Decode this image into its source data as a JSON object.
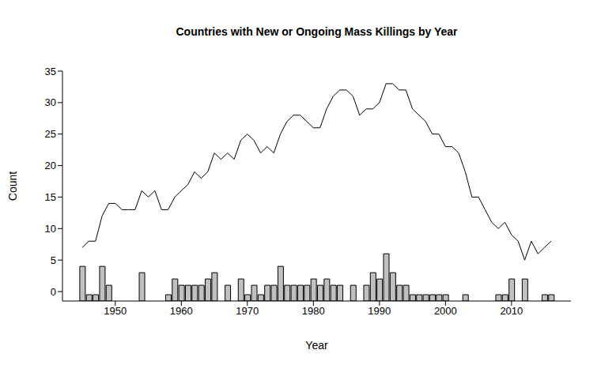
{
  "chart_data": {
    "type": "line",
    "title": "Countries with New or Ongoing Mass Killings by Year",
    "xlabel": "Year",
    "ylabel": "Count",
    "x": [
      1945,
      1946,
      1947,
      1948,
      1949,
      1950,
      1951,
      1952,
      1953,
      1954,
      1955,
      1956,
      1957,
      1958,
      1959,
      1960,
      1961,
      1962,
      1963,
      1964,
      1965,
      1966,
      1967,
      1968,
      1969,
      1970,
      1971,
      1972,
      1973,
      1974,
      1975,
      1976,
      1977,
      1978,
      1979,
      1980,
      1981,
      1982,
      1983,
      1984,
      1985,
      1986,
      1987,
      1988,
      1989,
      1990,
      1991,
      1992,
      1993,
      1994,
      1995,
      1996,
      1997,
      1998,
      1999,
      2000,
      2001,
      2002,
      2003,
      2004,
      2005,
      2006,
      2007,
      2008,
      2009,
      2010,
      2011,
      2012,
      2013,
      2014,
      2015,
      2016
    ],
    "series": [
      {
        "type": "line",
        "color": "#000000",
        "values": [
          7,
          8,
          8,
          12,
          14,
          14,
          13,
          13,
          13,
          16,
          15,
          16,
          13,
          13,
          15,
          16,
          17,
          19,
          18,
          19,
          22,
          21,
          22,
          21,
          24,
          25,
          24,
          22,
          23,
          22,
          25,
          27,
          28,
          28,
          27,
          26,
          26,
          29,
          31,
          32,
          32,
          31,
          28,
          29,
          29,
          30,
          33,
          33,
          32,
          32,
          29,
          28,
          27,
          25,
          25,
          23,
          23,
          22,
          19,
          15,
          15,
          13,
          11,
          10,
          11,
          9,
          8,
          5,
          8,
          6,
          7,
          8
        ]
      },
      {
        "type": "bar",
        "color": "#c0c0c0",
        "values": [
          4,
          -0.5,
          -0.5,
          4,
          1,
          null,
          null,
          null,
          null,
          3,
          null,
          null,
          null,
          -0.5,
          2,
          1,
          1,
          1,
          1,
          2,
          3,
          null,
          1,
          null,
          2,
          -0.5,
          1,
          -0.5,
          1,
          1,
          4,
          1,
          1,
          1,
          1,
          2,
          1,
          2,
          1,
          1,
          null,
          1,
          null,
          1,
          3,
          2,
          6,
          3,
          1,
          1,
          -0.5,
          -0.5,
          -0.5,
          -0.5,
          -0.5,
          -0.5,
          null,
          null,
          -0.5,
          null,
          null,
          null,
          null,
          -0.5,
          -0.5,
          2,
          null,
          2,
          null,
          null,
          -0.5,
          -0.5
        ]
      }
    ],
    "xlim": [
      1942,
      2019
    ],
    "xticks": [
      1950,
      1960,
      1970,
      1980,
      1990,
      2000,
      2010
    ],
    "ylim": [
      -1.5,
      35
    ],
    "yticks": [
      0,
      5,
      10,
      15,
      20,
      25,
      30,
      35
    ]
  }
}
